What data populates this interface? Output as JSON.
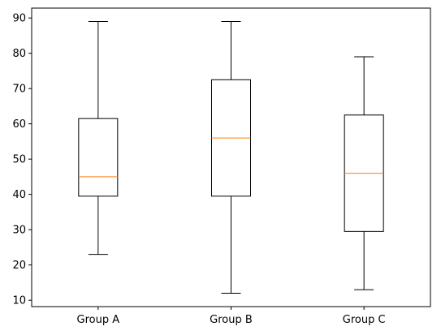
{
  "chart_data": {
    "type": "boxplot",
    "title": "",
    "xlabel": "",
    "ylabel": "",
    "ylim": [
      8.2,
      92.8
    ],
    "yticks": [
      10,
      20,
      30,
      40,
      50,
      60,
      70,
      80,
      90
    ],
    "categories": [
      "Group A",
      "Group B",
      "Group C"
    ],
    "boxes": [
      {
        "label": "Group A",
        "whislo": 23,
        "q1": 39.5,
        "med": 45,
        "q3": 61.5,
        "whishi": 89
      },
      {
        "label": "Group B",
        "whislo": 12,
        "q1": 39.5,
        "med": 56,
        "q3": 72.5,
        "whishi": 89
      },
      {
        "label": "Group C",
        "whislo": 13,
        "q1": 29.5,
        "med": 46,
        "q3": 62.5,
        "whishi": 79
      }
    ],
    "grid": false,
    "colors": {
      "box": "#000000",
      "median": "#ff7f0e",
      "axes": "#000000",
      "background": "#ffffff"
    }
  }
}
